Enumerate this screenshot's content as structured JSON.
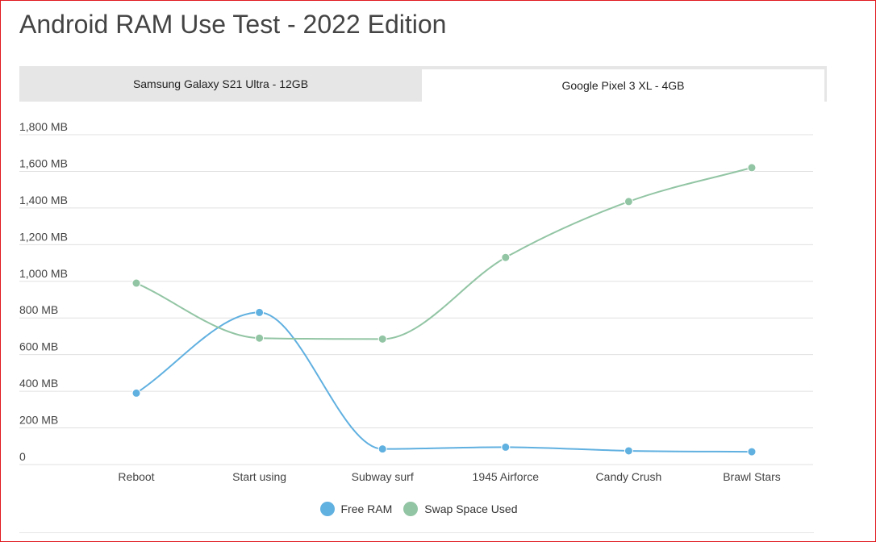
{
  "page": {
    "title": "Android RAM Use Test - 2022 Edition"
  },
  "tabs": [
    {
      "label": "Samsung Galaxy S21 Ultra - 12GB",
      "active": false
    },
    {
      "label": "Google Pixel 3 XL - 4GB",
      "active": true
    }
  ],
  "colors": {
    "free_ram": "#60b0e0",
    "swap": "#92c5a4",
    "grid": "#e0e0e0",
    "tick_text": "#444444"
  },
  "chart_data": {
    "type": "line",
    "categories": [
      "Reboot",
      "Start using",
      "Subway surf",
      "1945 Airforce",
      "Candy Crush",
      "Brawl Stars"
    ],
    "series": [
      {
        "name": "Free RAM",
        "values": [
          390,
          830,
          85,
          95,
          75,
          70
        ]
      },
      {
        "name": "Swap Space Used",
        "values": [
          990,
          690,
          685,
          1130,
          1435,
          1620
        ]
      }
    ],
    "ylim": [
      0,
      1800
    ],
    "yticks": [
      0,
      200,
      400,
      600,
      800,
      1000,
      1200,
      1400,
      1600,
      1800
    ],
    "ytick_labels": [
      "0",
      "200 MB",
      "400 MB",
      "600 MB",
      "800 MB",
      "1,000 MB",
      "1,200 MB",
      "1,400 MB",
      "1,600 MB",
      "1,800 MB"
    ],
    "grid": true,
    "legend_position": "bottom",
    "smooth": true
  }
}
